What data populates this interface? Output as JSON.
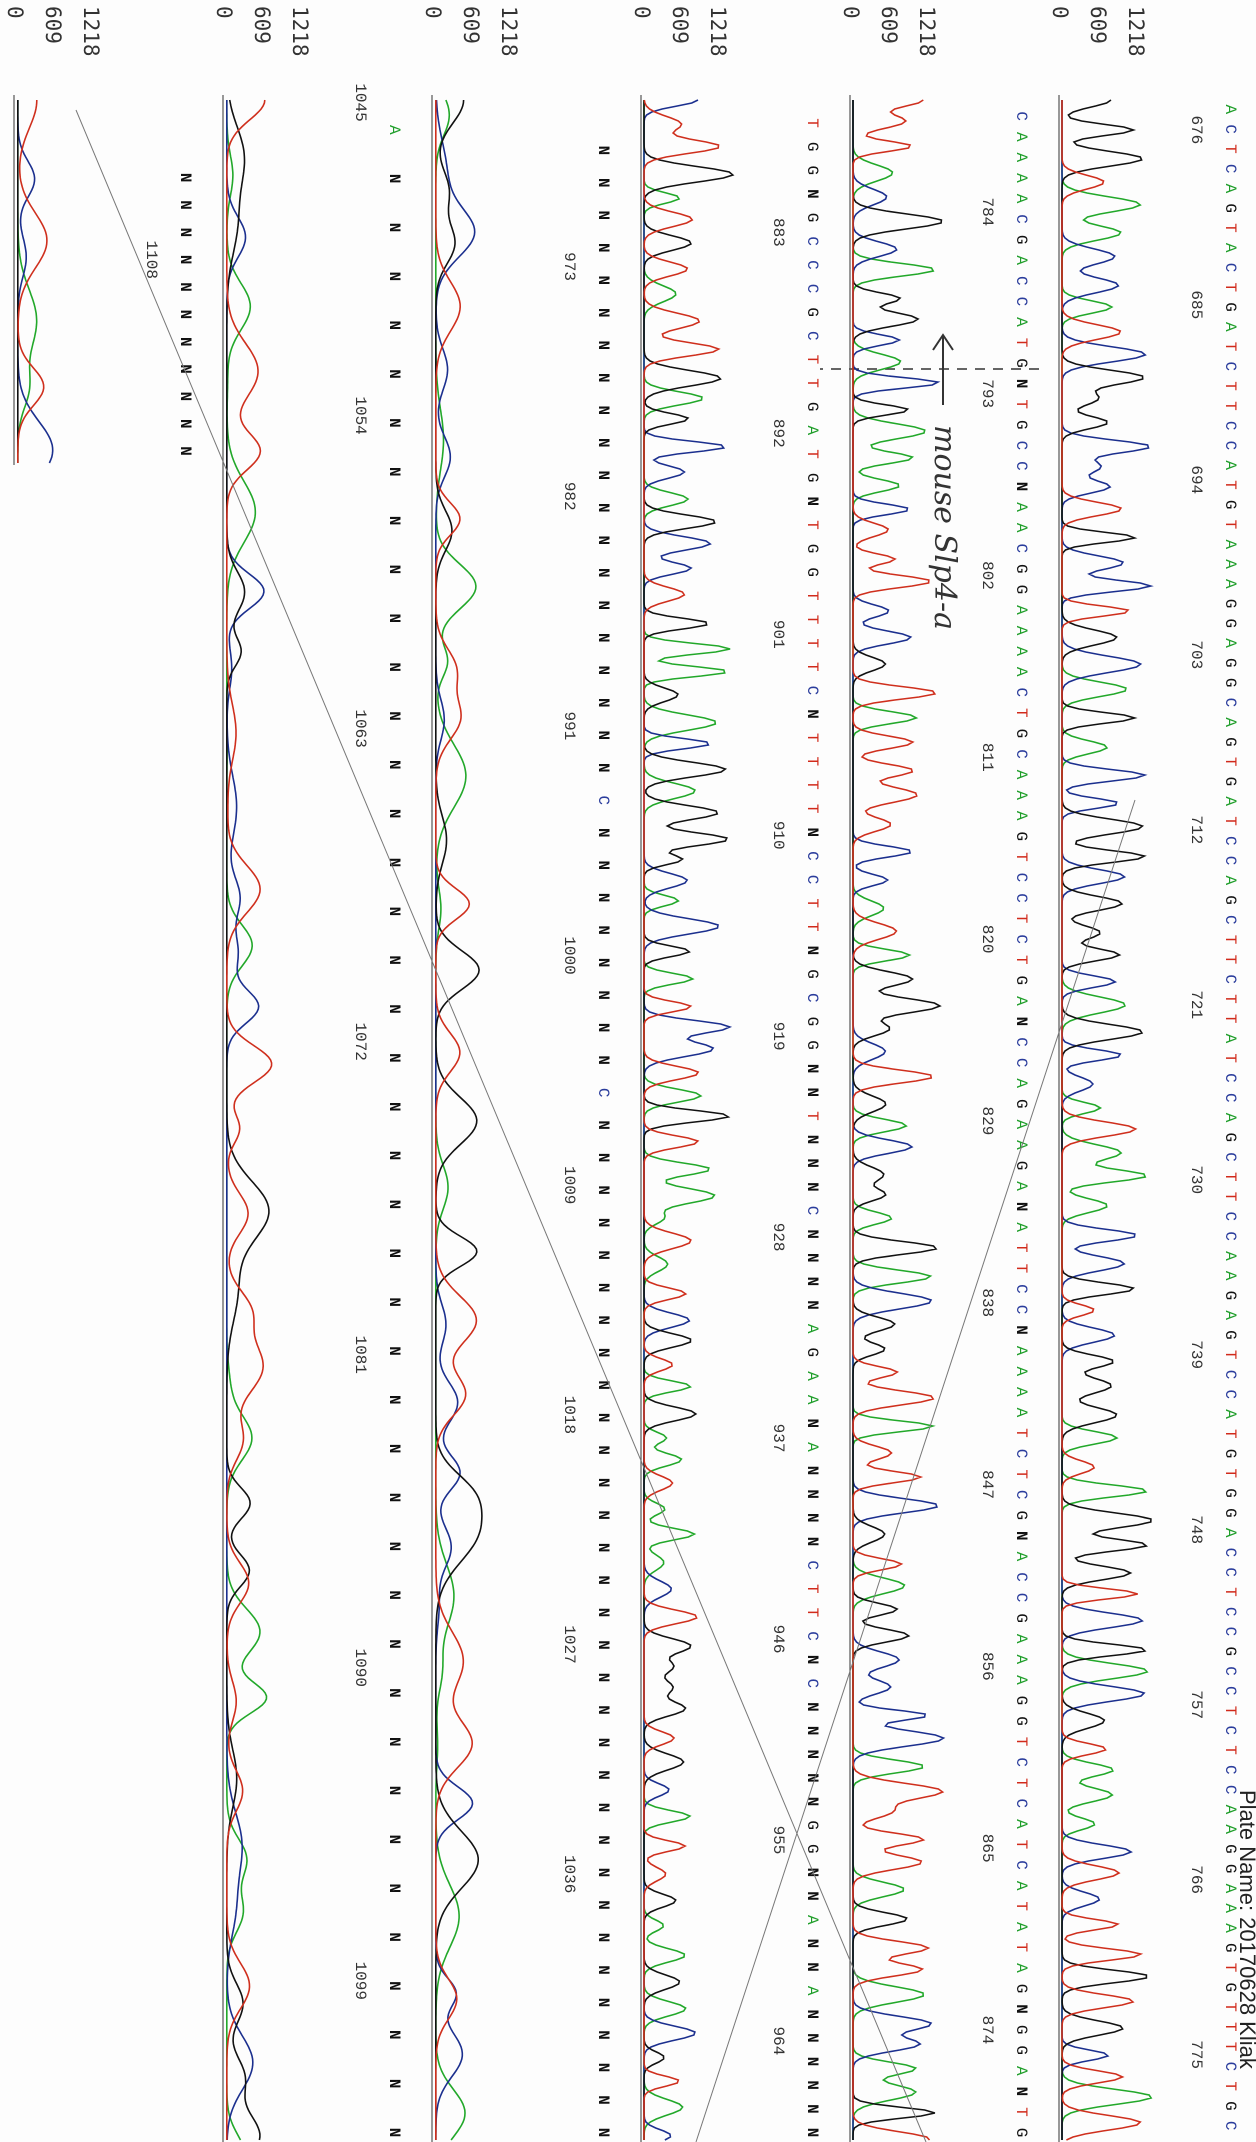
{
  "header": {
    "plate_name": "Plate Name: 20170628 Kliak"
  },
  "annotation": "mouse Slp4-a",
  "axis": {
    "ylim": [
      0,
      1218
    ],
    "yticks": [
      0,
      609,
      1218
    ]
  },
  "panels": [
    {
      "positions": [
        676,
        685,
        694,
        703,
        712,
        721,
        730,
        739,
        748,
        757,
        766,
        775
      ],
      "bases": [
        "A",
        "C",
        "T",
        "C",
        "A",
        "G",
        "T",
        "A",
        "C",
        "T",
        "G",
        "A",
        "T",
        "C",
        "T",
        "T",
        "C",
        "C",
        "A",
        "T",
        "G",
        "T",
        "A",
        "A",
        "A",
        "G",
        "G",
        "A",
        "G",
        "G",
        "C",
        "A",
        "G",
        "T",
        "G",
        "A",
        "T",
        "C",
        "C",
        "A",
        "G",
        "C",
        "T",
        "T",
        "C",
        "T",
        "T",
        "A",
        "T",
        "C",
        "C",
        "A",
        "G",
        "C",
        "T",
        "T",
        "C",
        "C",
        "A",
        "A",
        "G",
        "A",
        "G",
        "T",
        "C",
        "C",
        "A",
        "T",
        "G",
        "T",
        "G",
        "G",
        "A",
        "C",
        "C",
        "T",
        "C",
        "C",
        "G",
        "C",
        "C",
        "T",
        "C",
        "T",
        "C",
        "C",
        "A",
        "A",
        "G",
        "G",
        "A",
        "A",
        "A",
        "G",
        "T",
        "G",
        "T",
        "T",
        "T",
        "C",
        "T",
        "G",
        "C"
      ]
    },
    {
      "positions": [
        784,
        793,
        802,
        811,
        820,
        829,
        838,
        847,
        856,
        865,
        874
      ],
      "bases": [
        "C",
        "A",
        "A",
        "A",
        "A",
        "C",
        "G",
        "A",
        "C",
        "C",
        "A",
        "T",
        "G",
        "N",
        "T",
        "G",
        "C",
        "C",
        "N",
        "A",
        "A",
        "C",
        "G",
        "G",
        "A",
        "A",
        "A",
        "A",
        "C",
        "T",
        "G",
        "C",
        "A",
        "A",
        "A",
        "G",
        "T",
        "C",
        "C",
        "T",
        "C",
        "T",
        "G",
        "A",
        "N",
        "C",
        "C",
        "A",
        "G",
        "A",
        "A",
        "G",
        "A",
        "N",
        "A",
        "T",
        "T",
        "C",
        "C",
        "N",
        "A",
        "A",
        "A",
        "A",
        "T",
        "C",
        "T",
        "C",
        "G",
        "N",
        "A",
        "C",
        "C",
        "G",
        "A",
        "A",
        "A",
        "G",
        "G",
        "T",
        "C",
        "T",
        "C",
        "A",
        "T",
        "C",
        "A",
        "T",
        "A",
        "T",
        "A",
        "G",
        "N",
        "G",
        "G",
        "A",
        "N",
        "T",
        "G"
      ]
    },
    {
      "positions": [
        883,
        892,
        901,
        910,
        919,
        928,
        937,
        946,
        955,
        964
      ],
      "bases": [
        "T",
        "G",
        "G",
        "N",
        "G",
        "C",
        "C",
        "C",
        "G",
        "C",
        "T",
        "T",
        "G",
        "A",
        "T",
        "G",
        "N",
        "T",
        "G",
        "G",
        "T",
        "T",
        "T",
        "T",
        "C",
        "N",
        "T",
        "T",
        "T",
        "T",
        "N",
        "C",
        "C",
        "T",
        "T",
        "N",
        "G",
        "C",
        "G",
        "G",
        "N",
        "N",
        "T",
        "N",
        "N",
        "N",
        "C",
        "N",
        "N",
        "N",
        "N",
        "A",
        "G",
        "A",
        "A",
        "N",
        "A",
        "N",
        "N",
        "N",
        "N",
        "C",
        "T",
        "T",
        "C",
        "N",
        "C",
        "N",
        "N",
        "N",
        "N",
        "N",
        "G",
        "G",
        "N",
        "N",
        "A",
        "N",
        "N",
        "A",
        "N",
        "N",
        "N",
        "N",
        "N",
        "N"
      ]
    },
    {
      "positions": [
        973,
        982,
        991,
        1000,
        1009,
        1018,
        1027,
        1036
      ],
      "bases": [
        "N",
        "N",
        "N",
        "N",
        "N",
        "N",
        "N",
        "N",
        "N",
        "N",
        "N",
        "N",
        "N",
        "N",
        "N",
        "N",
        "N",
        "N",
        "N",
        "N",
        "C",
        "N",
        "N",
        "N",
        "N",
        "N",
        "N",
        "N",
        "N",
        "C",
        "N",
        "N",
        "N",
        "N",
        "N",
        "N",
        "N",
        "N",
        "N",
        "N",
        "N",
        "N",
        "N",
        "N",
        "N",
        "N",
        "N",
        "N",
        "N",
        "N",
        "N",
        "N",
        "N",
        "N",
        "N",
        "N",
        "N",
        "N",
        "N",
        "N",
        "N",
        "N"
      ]
    },
    {
      "positions": [
        1045,
        1054,
        1063,
        1072,
        1081,
        1090,
        1099
      ],
      "bases": [
        "A",
        "N",
        "N",
        "N",
        "N",
        "N",
        "N",
        "N",
        "N",
        "N",
        "N",
        "N",
        "N",
        "N",
        "N",
        "N",
        "N",
        "N",
        "N",
        "N",
        "N",
        "N",
        "N",
        "N",
        "N",
        "N",
        "N",
        "N",
        "N",
        "N",
        "N",
        "N",
        "N",
        "N",
        "N",
        "N",
        "N",
        "N",
        "N",
        "N",
        "N",
        "N"
      ]
    },
    {
      "positions": [
        1108
      ],
      "bases": [
        "N",
        "N",
        "N",
        "N",
        "N",
        "N",
        "N",
        "N",
        "N",
        "N",
        "N"
      ]
    }
  ]
}
